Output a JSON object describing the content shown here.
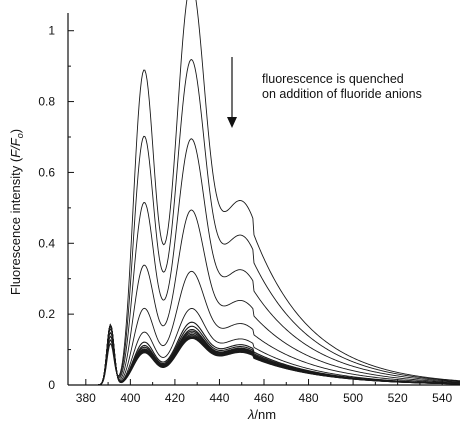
{
  "chart_data": {
    "type": "line",
    "title": "",
    "xlabel_symbol": "λ",
    "xlabel_unit": "/nm",
    "ylabel_main": "Fluorescence intensity (",
    "ylabel_italic": "F/F",
    "ylabel_sub": "o",
    "ylabel_close": ")",
    "xlim": [
      372,
      548
    ],
    "ylim": [
      0,
      1.05
    ],
    "x_ticks": [
      380,
      400,
      420,
      440,
      460,
      480,
      500,
      520,
      540
    ],
    "y_ticks": [
      0,
      0.2,
      0.4,
      0.6,
      0.8,
      1
    ],
    "y_tick_labels": [
      "0",
      "0.2",
      "0.4",
      "0.6",
      "0.8",
      "1"
    ],
    "grid": false,
    "legend": "none",
    "annotation": {
      "line1": "fluorescence is quenched",
      "line2": "on addition of fluoride anions",
      "arrow": "down"
    },
    "peak_positions_nm": [
      391,
      406,
      427,
      450
    ],
    "series": [
      {
        "values": [
          0.94,
          1.0,
          0.48
        ]
      },
      {
        "values": [
          0.74,
          0.81,
          0.39
        ]
      },
      {
        "values": [
          0.54,
          0.61,
          0.3
        ]
      },
      {
        "values": [
          0.35,
          0.43,
          0.22
        ]
      },
      {
        "values": [
          0.22,
          0.27,
          0.16
        ]
      },
      {
        "values": [
          0.15,
          0.175,
          0.12
        ]
      },
      {
        "values": [
          0.12,
          0.14,
          0.105
        ]
      },
      {
        "values": [
          0.11,
          0.13,
          0.1
        ]
      },
      {
        "values": [
          0.105,
          0.122,
          0.096
        ]
      },
      {
        "values": [
          0.1,
          0.118,
          0.094
        ]
      },
      {
        "values": [
          0.097,
          0.114,
          0.092
        ]
      },
      {
        "values": [
          0.095,
          0.11,
          0.09
        ]
      },
      {
        "values": [
          0.093,
          0.107,
          0.088
        ]
      },
      {
        "values": [
          0.091,
          0.104,
          0.087
        ]
      },
      {
        "values": [
          0.09,
          0.102,
          0.086
        ]
      },
      {
        "values": [
          0.089,
          0.1,
          0.085
        ]
      }
    ]
  }
}
